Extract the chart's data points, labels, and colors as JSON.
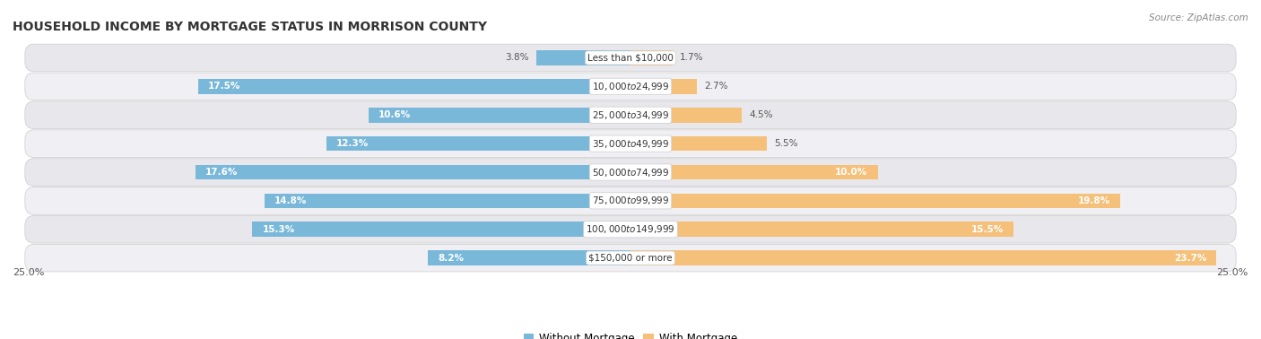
{
  "title": "HOUSEHOLD INCOME BY MORTGAGE STATUS IN MORRISON COUNTY",
  "source": "Source: ZipAtlas.com",
  "categories": [
    "Less than $10,000",
    "$10,000 to $24,999",
    "$25,000 to $34,999",
    "$35,000 to $49,999",
    "$50,000 to $74,999",
    "$75,000 to $99,999",
    "$100,000 to $149,999",
    "$150,000 or more"
  ],
  "without_mortgage": [
    3.8,
    17.5,
    10.6,
    12.3,
    17.6,
    14.8,
    15.3,
    8.2
  ],
  "with_mortgage": [
    1.7,
    2.7,
    4.5,
    5.5,
    10.0,
    19.8,
    15.5,
    23.7
  ],
  "color_without": "#7ab8d9",
  "color_with": "#f5c07a",
  "color_without_light": "#a8cfe8",
  "color_with_light": "#f9d9a8",
  "row_bg_dark": "#e8e8ec",
  "row_bg_light": "#f0f0f4",
  "fig_bg": "#ffffff",
  "xlim": 25.0,
  "axis_label_left": "25.0%",
  "axis_label_right": "25.0%",
  "title_fontsize": 10,
  "label_fontsize": 7.5,
  "bar_label_fontsize": 7.5
}
